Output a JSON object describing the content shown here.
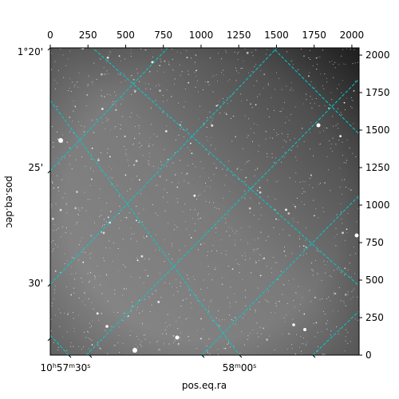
{
  "chart_data": {
    "type": "image",
    "xlabel": "pos.eq.ra",
    "ylabel": "pos.eq.dec",
    "pixel_x": {
      "range": [
        0,
        2048
      ],
      "ticks": [
        0,
        250,
        500,
        750,
        1000,
        1250,
        1500,
        1750,
        2000
      ],
      "position": "top"
    },
    "pixel_y": {
      "range": [
        0,
        2048
      ],
      "ticks": [
        0,
        250,
        500,
        750,
        1000,
        1250,
        1500,
        1750,
        2000
      ],
      "position": "right"
    },
    "ra_tick_labels": [
      {
        "hms": "10h57m30s",
        "h": "10",
        "m": "57",
        "s": "30"
      },
      {
        "hms": "58m00s",
        "m": "58",
        "s": "00"
      }
    ],
    "dec_tick_labels": [
      "1°20'",
      "25'",
      "30'"
    ],
    "grid": true,
    "grid_color": "#00cccc",
    "colormap": "gray",
    "image_description": "grayscale sky field with dense faint stars, darker toward the top-right corner"
  }
}
